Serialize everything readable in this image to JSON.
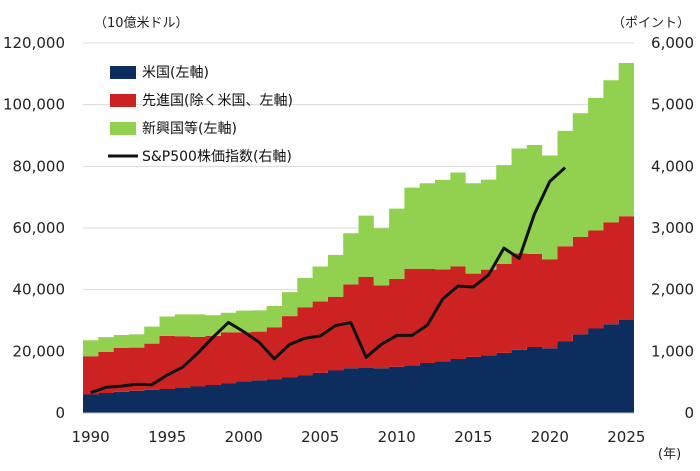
{
  "chart_data": {
    "type": "area",
    "stacked": true,
    "x": [
      1990,
      1991,
      1992,
      1993,
      1994,
      1995,
      1996,
      1997,
      1998,
      1999,
      2000,
      2001,
      2002,
      2003,
      2004,
      2005,
      2006,
      2007,
      2008,
      2009,
      2010,
      2011,
      2012,
      2013,
      2014,
      2015,
      2016,
      2017,
      2018,
      2019,
      2020,
      2021,
      2022,
      2023,
      2024,
      2025
    ],
    "xticks": [
      1990,
      1995,
      2000,
      2005,
      2010,
      2015,
      2020,
      2025
    ],
    "xlabel": "(年)",
    "xlim": [
      1990,
      2025
    ],
    "left_axis": {
      "unit_label": "（10億米ドル）",
      "lim": [
        0,
        120000
      ],
      "ticks": [
        "0",
        "20,000",
        "40,000",
        "60,000",
        "80,000",
        "100,000",
        "120,000"
      ]
    },
    "right_axis": {
      "unit_label": "（ポイント）",
      "lim": [
        0,
        6000
      ],
      "ticks": [
        "0",
        "1,000",
        "2,000",
        "3,000",
        "4,000",
        "5,000",
        "6,000"
      ]
    },
    "grid": true,
    "legend_position": "top-left",
    "series": [
      {
        "name": "米国(左軸)",
        "kind": "area",
        "axis": "left",
        "color": "#0c2d5e",
        "values": [
          6000,
          6500,
          6900,
          7200,
          7500,
          7800,
          8100,
          8600,
          9100,
          9700,
          10300,
          10600,
          11000,
          11500,
          12300,
          13000,
          13800,
          14500,
          14700,
          14500,
          15000,
          15500,
          16200,
          16800,
          17500,
          18200,
          18700,
          19500,
          20500,
          21400,
          21000,
          23300,
          25500,
          27400,
          28800,
          30300
        ]
      },
      {
        "name": "先進国(除く米国、左軸)",
        "kind": "area",
        "axis": "left",
        "color": "#cc2222",
        "values": [
          12400,
          13300,
          14200,
          14000,
          15000,
          17200,
          16800,
          16100,
          15900,
          16500,
          15900,
          15800,
          16800,
          19900,
          22000,
          23200,
          23900,
          27200,
          29400,
          26900,
          28500,
          31300,
          30500,
          29800,
          30000,
          27000,
          27800,
          28900,
          31300,
          30200,
          28800,
          30800,
          31600,
          31800,
          33000,
          33500
        ]
      },
      {
        "name": "新興国等(左軸)",
        "kind": "area",
        "axis": "left",
        "color": "#92d050",
        "values": [
          5200,
          4800,
          4200,
          4300,
          5500,
          6300,
          7100,
          7300,
          6700,
          6300,
          7000,
          6900,
          6900,
          7800,
          9500,
          11300,
          13600,
          16600,
          19900,
          18500,
          22800,
          26300,
          27800,
          29000,
          30500,
          29300,
          29200,
          32000,
          34000,
          35300,
          33700,
          37400,
          40100,
          43000,
          46100,
          49700
        ]
      },
      {
        "name": "S&P500株価指数(右軸)",
        "kind": "line",
        "axis": "right",
        "color": "#111111",
        "x": [
          1990,
          1991,
          1992,
          1993,
          1994,
          1995,
          1996,
          1997,
          1998,
          1999,
          2000,
          2001,
          2002,
          2003,
          2004,
          2005,
          2006,
          2007,
          2008,
          2009,
          2010,
          2011,
          2012,
          2013,
          2014,
          2015,
          2016,
          2017,
          2018,
          2019,
          2020,
          2021
        ],
        "values": [
          330,
          417,
          436,
          466,
          459,
          616,
          741,
          970,
          1229,
          1469,
          1320,
          1148,
          880,
          1112,
          1212,
          1248,
          1418,
          1468,
          903,
          1115,
          1258,
          1258,
          1426,
          1848,
          2059,
          2044,
          2239,
          2674,
          2507,
          3231,
          3756,
          3980
        ]
      }
    ]
  }
}
